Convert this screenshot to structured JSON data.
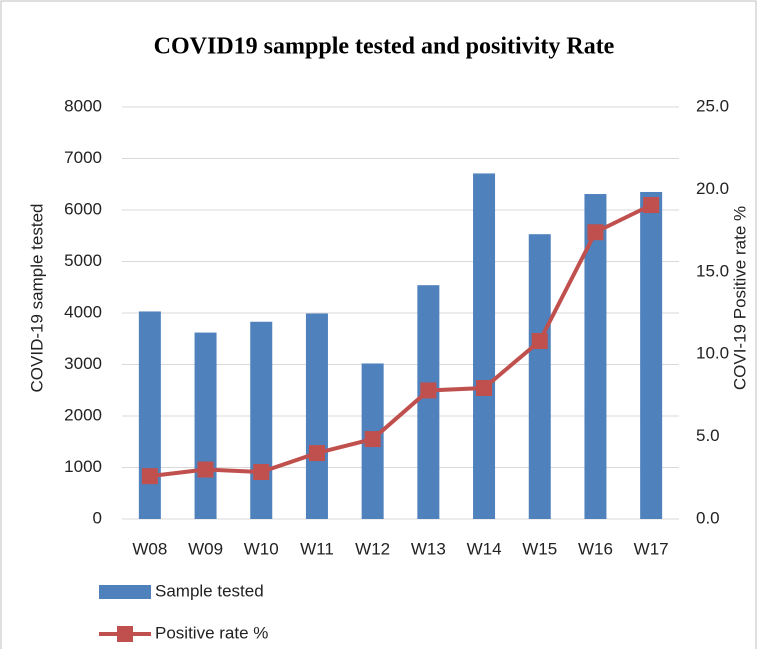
{
  "chart_data": {
    "type": "bar_line",
    "title": "COVID19 sampple tested and positivity Rate",
    "ylabel": "COVID-19 sample tested",
    "y2label": "COVI-19 Positive rate %",
    "categories": [
      "W08",
      "W09",
      "W10",
      "W11",
      "W12",
      "W13",
      "W14",
      "W15",
      "W16",
      "W17"
    ],
    "series": [
      {
        "name": "Sample tested",
        "type": "bar",
        "color": "#4f81bd",
        "values": [
          4030,
          3620,
          3830,
          3990,
          3020,
          4540,
          6710,
          5530,
          6310,
          6350
        ]
      },
      {
        "name": "Positive rate %",
        "type": "line",
        "axis": "y2",
        "color": "#c0504d",
        "values": [
          2.6,
          3.0,
          2.85,
          4.0,
          4.85,
          7.8,
          7.95,
          10.8,
          17.4,
          19.05
        ]
      }
    ],
    "ylim": [
      0,
      8000
    ],
    "yticks": [
      0,
      1000,
      2000,
      3000,
      4000,
      5000,
      6000,
      7000,
      8000
    ],
    "y2lim": [
      0,
      25
    ],
    "y2ticks": [
      {
        "value": 0,
        "label": "0.0"
      },
      {
        "value": 5,
        "label": "5.0"
      },
      {
        "value": 10,
        "label": "10.0"
      },
      {
        "value": 15,
        "label": "15.0"
      },
      {
        "value": 20,
        "label": "20.0"
      },
      {
        "value": 25,
        "label": "25.0"
      }
    ],
    "grid": true,
    "legend": "bottom-left"
  }
}
